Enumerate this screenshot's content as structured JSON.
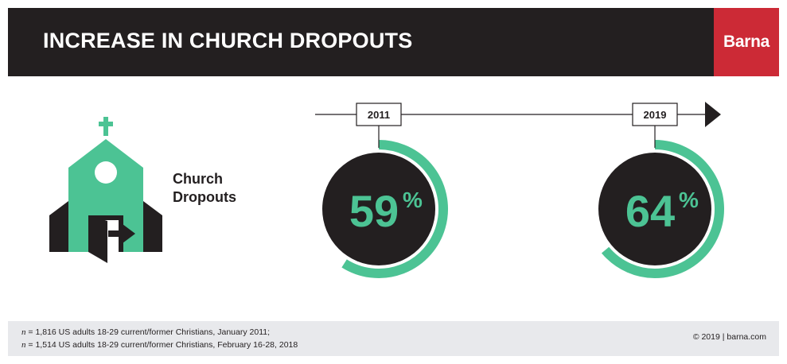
{
  "header": {
    "title": "INCREASE IN CHURCH DROPOUTS",
    "brand": "Barna"
  },
  "label": {
    "line1": "Church",
    "line2": "Dropouts"
  },
  "colors": {
    "header_bg": "#231f20",
    "brand_bg": "#cc2a36",
    "accent": "#4cc394",
    "circle": "#231f20",
    "footer_bg": "#e8e9ec"
  },
  "icons": {
    "church": "church-icon",
    "exit": "exit-door-icon",
    "timeline_arrow": "arrow-right-icon"
  },
  "chart_data": {
    "type": "progress-ring",
    "title": "INCREASE IN CHURCH DROPOUTS",
    "unit": "%",
    "categories": [
      "2011",
      "2019"
    ],
    "series": [
      {
        "name": "Church Dropouts",
        "values": [
          59,
          64
        ]
      }
    ]
  },
  "footer": {
    "n_symbol": "n",
    "note_line1_rest": " = 1,816 US adults 18-29 current/former Christians, January 2011;",
    "note_line2_rest": " = 1,514 US adults 18-29 current/former Christians, February 16-28, 2018",
    "copyright": "© 2019 | barna.com"
  }
}
